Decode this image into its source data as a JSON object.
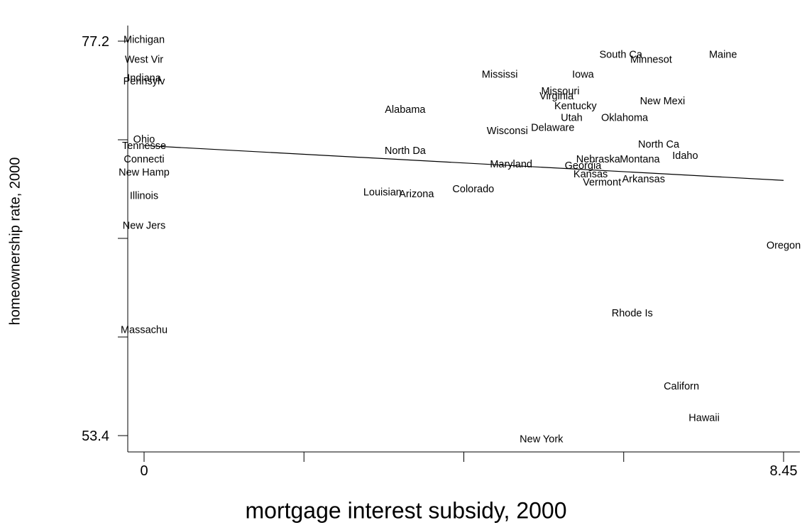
{
  "chart_data": {
    "type": "scatter",
    "xlabel": "mortgage interest subsidy, 2000",
    "ylabel": "homeownership rate, 2000",
    "xlim": [
      0,
      8.45
    ],
    "ylim": [
      53.4,
      77.2
    ],
    "x_tick_labels": [
      "0",
      "8.45"
    ],
    "y_tick_labels": [
      "77.2",
      "53.4"
    ],
    "x_ticks": [
      0,
      2.1125,
      4.225,
      6.3375,
      8.45
    ],
    "y_ticks": [
      53.4,
      59.35,
      65.3,
      71.25,
      77.2
    ],
    "marker": "label",
    "grid": false,
    "points": [
      {
        "label": "Michigan",
        "x": 0.0,
        "y": 77.3
      },
      {
        "label": "West Vir",
        "x": 0.0,
        "y": 76.1
      },
      {
        "label": "Indiana",
        "x": 0.0,
        "y": 75.0
      },
      {
        "label": "Pennsylv",
        "x": 0.0,
        "y": 74.8
      },
      {
        "label": "Ohio",
        "x": 0.0,
        "y": 71.3
      },
      {
        "label": "Tennesse",
        "x": 0.0,
        "y": 70.9
      },
      {
        "label": "Connecti",
        "x": 0.0,
        "y": 70.1
      },
      {
        "label": "New Hamp",
        "x": 0.0,
        "y": 69.3
      },
      {
        "label": "Illinois",
        "x": 0.0,
        "y": 67.9
      },
      {
        "label": "New Jers",
        "x": 0.0,
        "y": 66.1
      },
      {
        "label": "Massachu",
        "x": 0.0,
        "y": 59.8
      },
      {
        "label": "Alabama",
        "x": 3.45,
        "y": 73.1
      },
      {
        "label": "North Da",
        "x": 3.45,
        "y": 70.6
      },
      {
        "label": "Louisian",
        "x": 3.15,
        "y": 68.1
      },
      {
        "label": "Arizona",
        "x": 3.6,
        "y": 68.0
      },
      {
        "label": "Colorado",
        "x": 4.35,
        "y": 68.3
      },
      {
        "label": "Mississi",
        "x": 4.7,
        "y": 75.2
      },
      {
        "label": "Wisconsi",
        "x": 4.8,
        "y": 71.8
      },
      {
        "label": "Maryland",
        "x": 4.85,
        "y": 69.8
      },
      {
        "label": "Missouri",
        "x": 5.5,
        "y": 74.2
      },
      {
        "label": "Virginia",
        "x": 5.45,
        "y": 73.9
      },
      {
        "label": "Delaware",
        "x": 5.4,
        "y": 72.0
      },
      {
        "label": "Kentucky",
        "x": 5.7,
        "y": 73.3
      },
      {
        "label": "Georgia",
        "x": 5.8,
        "y": 69.7
      },
      {
        "label": "Utah",
        "x": 5.65,
        "y": 72.6
      },
      {
        "label": "Iowa",
        "x": 5.8,
        "y": 75.2
      },
      {
        "label": "Oklahoma",
        "x": 6.35,
        "y": 72.6
      },
      {
        "label": "Nebraska",
        "x": 6.0,
        "y": 70.1
      },
      {
        "label": "Kansas",
        "x": 5.9,
        "y": 69.2
      },
      {
        "label": "Vermont",
        "x": 6.05,
        "y": 68.7
      },
      {
        "label": "Montana",
        "x": 6.55,
        "y": 70.1
      },
      {
        "label": "Arkansas",
        "x": 6.6,
        "y": 68.9
      },
      {
        "label": "South Ca",
        "x": 6.3,
        "y": 76.4
      },
      {
        "label": "Minnesot",
        "x": 6.7,
        "y": 76.1
      },
      {
        "label": "New Mexi",
        "x": 6.85,
        "y": 73.6
      },
      {
        "label": "North Ca",
        "x": 6.8,
        "y": 71.0
      },
      {
        "label": "Idaho",
        "x": 7.15,
        "y": 70.3
      },
      {
        "label": "Maine",
        "x": 7.65,
        "y": 76.4
      },
      {
        "label": "Oregon",
        "x": 8.45,
        "y": 64.9
      },
      {
        "label": "Rhode Is",
        "x": 6.45,
        "y": 60.8
      },
      {
        "label": "Californ",
        "x": 7.1,
        "y": 56.4
      },
      {
        "label": "Hawaii",
        "x": 7.4,
        "y": 54.5
      },
      {
        "label": "New York",
        "x": 5.25,
        "y": 53.2
      }
    ],
    "fit_line": {
      "x": [
        0,
        8.45
      ],
      "y": [
        70.9,
        68.8
      ]
    }
  }
}
